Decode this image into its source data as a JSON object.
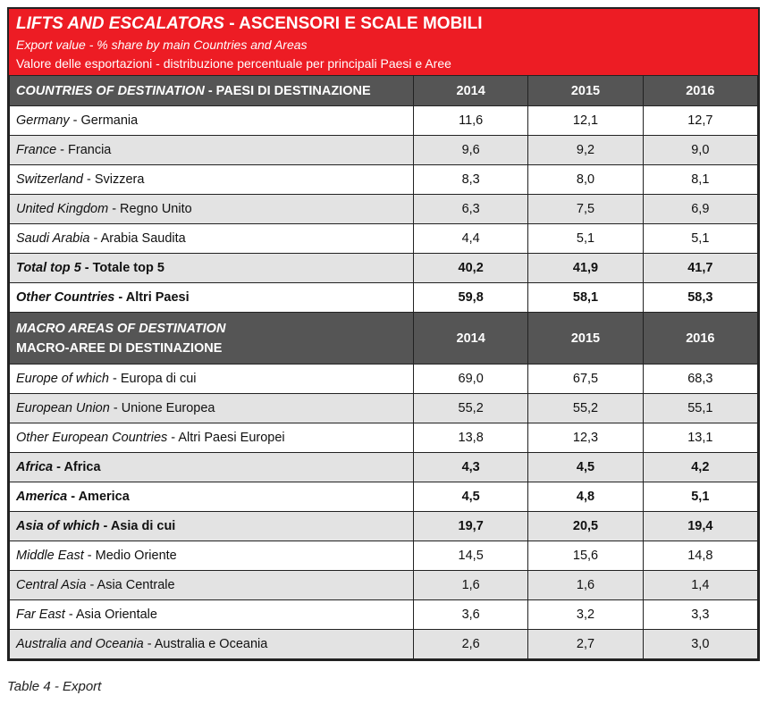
{
  "title": {
    "en": "LIFTS AND ESCALATORS",
    "it": " - ASCENSORI E SCALE MOBILI",
    "sub_en": "Export value - % share by main Countries and Areas",
    "sub_it": "Valore delle esportazioni - distribuzione percentuale per principali Paesi e Aree"
  },
  "countries_header": {
    "en": "COUNTRIES OF DESTINATION",
    "it": " - PAESI DI DESTINAZIONE",
    "years": [
      "2014",
      "2015",
      "2016"
    ]
  },
  "countries": [
    {
      "en": "Germany",
      "it": " - Germania",
      "v": [
        "11,6",
        "12,1",
        "12,7"
      ]
    },
    {
      "en": "France",
      "it": " - Francia",
      "v": [
        "9,6",
        "9,2",
        "9,0"
      ]
    },
    {
      "en": "Switzerland",
      "it": " - Svizzera",
      "v": [
        "8,3",
        "8,0",
        "8,1"
      ]
    },
    {
      "en": "United Kingdom",
      "it": " - Regno Unito",
      "v": [
        "6,3",
        "7,5",
        "6,9"
      ]
    },
    {
      "en": "Saudi Arabia",
      "it": " - Arabia Saudita",
      "v": [
        "4,4",
        "5,1",
        "5,1"
      ]
    },
    {
      "en": "Total top 5",
      "it": " - Totale top 5",
      "v": [
        "40,2",
        "41,9",
        "41,7"
      ]
    },
    {
      "en": "Other Countries",
      "it": " - Altri Paesi",
      "v": [
        "59,8",
        "58,1",
        "58,3"
      ]
    }
  ],
  "macro_header": {
    "en": "MACRO AREAS OF DESTINATION",
    "it": "MACRO-AREE DI DESTINAZIONE",
    "years": [
      "2014",
      "2015",
      "2016"
    ]
  },
  "macro": [
    {
      "en": "Europe of which",
      "it": " - Europa di cui",
      "v": [
        "69,0",
        "67,5",
        "68,3"
      ]
    },
    {
      "en": "European Union",
      "it": " - Unione Europea",
      "v": [
        "55,2",
        "55,2",
        "55,1"
      ]
    },
    {
      "en": "Other European Countries",
      "it": " - Altri Paesi Europei",
      "v": [
        "13,8",
        "12,3",
        "13,1"
      ]
    },
    {
      "en": "Africa",
      "it": " - Africa",
      "v": [
        "4,3",
        "4,5",
        "4,2"
      ]
    },
    {
      "en": "America",
      "it": " - America",
      "v": [
        "4,5",
        "4,8",
        "5,1"
      ]
    },
    {
      "en": "Asia of which",
      "it": " - Asia di cui",
      "v": [
        "19,7",
        "20,5",
        "19,4"
      ]
    },
    {
      "en": "Middle East",
      "it": " - Medio Oriente",
      "v": [
        "14,5",
        "15,6",
        "14,8"
      ]
    },
    {
      "en": "Central Asia",
      "it": " - Asia Centrale",
      "v": [
        "1,6",
        "1,6",
        "1,4"
      ]
    },
    {
      "en": "Far East",
      "it": " - Asia Orientale",
      "v": [
        "3,6",
        "3,2",
        "3,3"
      ]
    },
    {
      "en": "Australia and Oceania",
      "it": " - Australia e Oceania",
      "v": [
        "2,6",
        "2,7",
        "3,0"
      ]
    }
  ],
  "caption": "Table 4 - Export"
}
